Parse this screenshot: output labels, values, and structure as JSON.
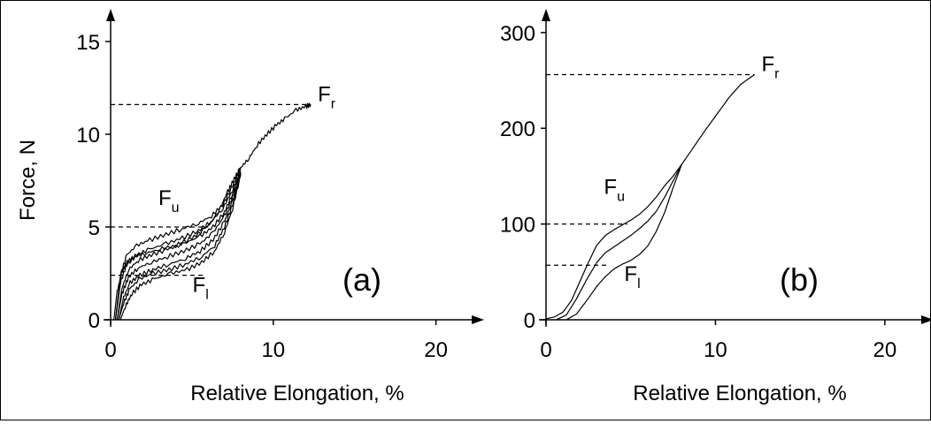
{
  "chart_data": [
    {
      "id": "a",
      "type": "line",
      "panel_label": "(a)",
      "xlabel": "Relative Elongation, %",
      "ylabel": "Force, N",
      "xlim": [
        0,
        21
      ],
      "ylim": [
        0,
        16
      ],
      "xticks": [
        0,
        10,
        20
      ],
      "yticks": [
        0,
        5,
        10,
        15
      ],
      "annotations": [
        {
          "main": "F",
          "sub": "r",
          "x": 12.3,
          "y": 11.6
        },
        {
          "main": "F",
          "sub": "u",
          "x": 2.5,
          "y": 6.0
        },
        {
          "main": "F",
          "sub": "l",
          "x": 4.6,
          "y": 1.3
        }
      ],
      "reference_lines": [
        {
          "y": 11.6,
          "x_end": 12.3
        },
        {
          "y": 5.0,
          "x_end": 6.0
        },
        {
          "y": 2.4,
          "x_end": 5.8
        }
      ],
      "series": [
        {
          "x": [
            0.2,
            0.4,
            0.7,
            1.0,
            1.5,
            2.2,
            3.0,
            4.0,
            5.0,
            5.8,
            6.5,
            7.2,
            7.6,
            8.0,
            8.5,
            9.0,
            9.6,
            10.2,
            10.8,
            11.4,
            12.0,
            12.3
          ],
          "y": [
            0.0,
            1.5,
            2.6,
            3.1,
            3.4,
            3.6,
            3.8,
            4.0,
            4.4,
            4.9,
            5.6,
            6.9,
            7.6,
            8.2,
            8.7,
            9.4,
            10.0,
            10.5,
            10.9,
            11.3,
            11.5,
            11.6
          ]
        },
        {
          "x": [
            0.3,
            0.6,
            1.0,
            1.6,
            2.4,
            3.4,
            4.4,
            5.4,
            6.2,
            6.9,
            7.5,
            8.0
          ],
          "y": [
            0.0,
            2.4,
            3.5,
            4.0,
            4.3,
            4.6,
            4.9,
            5.2,
            5.6,
            6.2,
            7.2,
            8.2
          ]
        },
        {
          "x": [
            0.3,
            0.6,
            1.0,
            1.6,
            2.4,
            3.4,
            4.4,
            5.4,
            6.2,
            6.9,
            7.5,
            8.0
          ],
          "y": [
            0.0,
            2.0,
            3.0,
            3.5,
            3.8,
            4.1,
            4.4,
            4.8,
            5.3,
            6.0,
            7.0,
            8.1
          ]
        },
        {
          "x": [
            0.4,
            0.7,
            1.1,
            1.7,
            2.5,
            3.5,
            4.5,
            5.5,
            6.3,
            7.0,
            7.5,
            8.0
          ],
          "y": [
            0.0,
            1.7,
            2.7,
            3.2,
            3.5,
            3.8,
            4.1,
            4.5,
            5.0,
            5.8,
            6.8,
            8.0
          ]
        },
        {
          "x": [
            0.4,
            0.7,
            1.1,
            1.7,
            2.5,
            3.5,
            4.5,
            5.5,
            6.3,
            7.0,
            7.5,
            8.0
          ],
          "y": [
            0.0,
            1.4,
            2.3,
            2.8,
            3.1,
            3.4,
            3.7,
            4.1,
            4.7,
            5.6,
            6.6,
            7.9
          ]
        },
        {
          "x": [
            0.5,
            0.8,
            1.2,
            1.8,
            2.6,
            3.6,
            4.6,
            5.5,
            6.3,
            7.0,
            7.5,
            8.0
          ],
          "y": [
            0.0,
            1.2,
            2.0,
            2.4,
            2.7,
            3.0,
            3.3,
            3.7,
            4.3,
            5.3,
            6.4,
            7.9
          ]
        },
        {
          "x": [
            0.5,
            0.8,
            1.2,
            1.8,
            2.6,
            3.6,
            4.6,
            5.6,
            6.4,
            7.0,
            7.5,
            8.0
          ],
          "y": [
            0.0,
            0.9,
            1.7,
            2.2,
            2.5,
            2.7,
            3.0,
            3.4,
            4.0,
            5.0,
            6.2,
            7.8
          ]
        },
        {
          "x": [
            0.6,
            0.9,
            1.3,
            1.9,
            2.7,
            3.7,
            4.7,
            5.6,
            6.4,
            7.0,
            7.5,
            8.0
          ],
          "y": [
            0.0,
            0.7,
            1.4,
            1.9,
            2.2,
            2.5,
            2.7,
            3.1,
            3.7,
            4.7,
            6.0,
            7.8
          ]
        }
      ]
    },
    {
      "id": "b",
      "type": "line",
      "panel_label": "(b)",
      "xlabel": "Relative Elongation, %",
      "ylabel": "",
      "xlim": [
        0,
        21
      ],
      "ylim": [
        0,
        310
      ],
      "xticks": [
        0,
        10,
        20
      ],
      "yticks": [
        0,
        100,
        200,
        300
      ],
      "annotations": [
        {
          "main": "F",
          "sub": "r",
          "x": 12.3,
          "y": 256
        },
        {
          "main": "F",
          "sub": "u",
          "x": 3.0,
          "y": 128
        },
        {
          "main": "F",
          "sub": "l",
          "x": 4.2,
          "y": 37
        }
      ],
      "reference_lines": [
        {
          "y": 256,
          "x_end": 12.3
        },
        {
          "y": 100,
          "x_end": 4.8
        },
        {
          "y": 57,
          "x_end": 3.6
        }
      ],
      "series": [
        {
          "x": [
            0.0,
            0.5,
            1.0,
            1.5,
            2.0,
            2.5,
            3.0,
            3.5,
            4.0,
            4.5,
            5.0,
            5.5,
            6.0,
            6.5,
            7.0,
            7.5,
            8.0,
            8.7,
            9.4,
            10.1,
            10.8,
            11.5,
            12.3
          ],
          "y": [
            1,
            3,
            8,
            20,
            40,
            60,
            78,
            88,
            94,
            99,
            104,
            110,
            118,
            128,
            140,
            150,
            162,
            180,
            198,
            215,
            232,
            246,
            256
          ]
        },
        {
          "x": [
            0.6,
            1.2,
            1.8,
            2.4,
            3.0,
            3.5,
            4.0,
            4.5,
            5.0,
            5.5,
            6.0,
            6.5,
            7.0,
            7.5,
            8.0
          ],
          "y": [
            0,
            5,
            22,
            42,
            60,
            70,
            76,
            82,
            88,
            95,
            103,
            113,
            128,
            145,
            162
          ]
        },
        {
          "x": [
            1.2,
            1.8,
            2.4,
            3.0,
            3.5,
            4.0,
            4.5,
            5.0,
            5.5,
            6.0,
            6.5,
            7.0,
            7.5,
            8.0
          ],
          "y": [
            0,
            6,
            20,
            35,
            45,
            53,
            58,
            62,
            68,
            77,
            92,
            112,
            138,
            162
          ]
        }
      ]
    }
  ]
}
